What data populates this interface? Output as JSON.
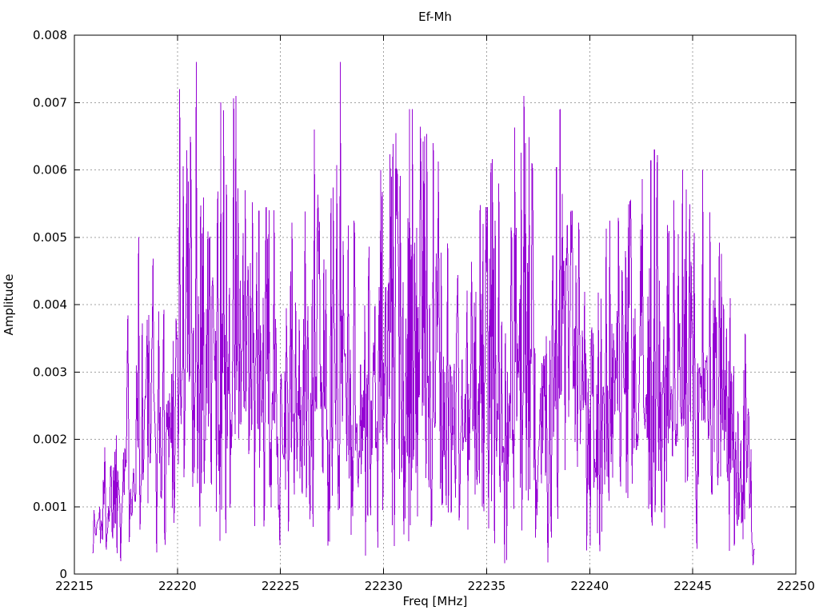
{
  "figure": {
    "background": "#ffffff",
    "text_color": "#000000"
  },
  "chart_data": {
    "type": "line",
    "title": "Ef-Mh",
    "xlabel": "Freq [MHz]",
    "ylabel": "Amplitude",
    "xlim": [
      22215,
      22250
    ],
    "ylim": [
      0,
      0.008
    ],
    "xticks": {
      "values": [
        22215,
        22220,
        22225,
        22230,
        22235,
        22240,
        22245,
        22250
      ],
      "labels": [
        "22215",
        "22220",
        "22225",
        "22230",
        "22235",
        "22240",
        "22245",
        "22250"
      ]
    },
    "yticks": {
      "values": [
        0,
        0.001,
        0.002,
        0.003,
        0.004,
        0.005,
        0.006,
        0.007,
        0.008
      ],
      "labels": [
        "0",
        "0.001",
        "0.002",
        "0.003",
        "0.004",
        "0.005",
        "0.006",
        "0.007",
        "0.008"
      ]
    },
    "grid": {
      "show": true,
      "color": "#a0a0a0",
      "style": "dotted"
    },
    "border_color": "#000000",
    "tick_color": "#000000",
    "legend": "none",
    "series": [
      {
        "name": "Ef-Mh",
        "color": "#9400d3",
        "style": "noisy-spectrum-line",
        "x_start": 22215.88,
        "x_end": 22248.0,
        "n_points": 920,
        "seed": 1337,
        "distribution": "rayleigh",
        "sigma_fraction": 0.4,
        "min_amplitude": 8e-05,
        "envelope": [
          [
            22215.88,
            0.0012
          ],
          [
            22216.3,
            0.0018
          ],
          [
            22217.0,
            0.0028
          ],
          [
            22217.8,
            0.0042
          ],
          [
            22218.1,
            0.005
          ],
          [
            22219.0,
            0.0046
          ],
          [
            22219.6,
            0.0042
          ],
          [
            22220.1,
            0.0072
          ],
          [
            22221.0,
            0.0078
          ],
          [
            22221.8,
            0.006
          ],
          [
            22222.3,
            0.007
          ],
          [
            22222.9,
            0.0072
          ],
          [
            22223.6,
            0.0058
          ],
          [
            22224.4,
            0.0054
          ],
          [
            22225.2,
            0.0054
          ],
          [
            22226.0,
            0.005
          ],
          [
            22226.8,
            0.0066
          ],
          [
            22227.5,
            0.0055
          ],
          [
            22228.0,
            0.0077
          ],
          [
            22228.7,
            0.005
          ],
          [
            22229.5,
            0.005
          ],
          [
            22230.2,
            0.0061
          ],
          [
            22231.0,
            0.007
          ],
          [
            22231.6,
            0.0067
          ],
          [
            22232.5,
            0.0064
          ],
          [
            22233.3,
            0.005
          ],
          [
            22234.2,
            0.0048
          ],
          [
            22235.2,
            0.0062
          ],
          [
            22235.8,
            0.0059
          ],
          [
            22236.8,
            0.0072
          ],
          [
            22237.6,
            0.005
          ],
          [
            22238.6,
            0.007
          ],
          [
            22239.5,
            0.0054
          ],
          [
            22240.5,
            0.0052
          ],
          [
            22241.5,
            0.0053
          ],
          [
            22242.3,
            0.0057
          ],
          [
            22243.2,
            0.0063
          ],
          [
            22244.0,
            0.0055
          ],
          [
            22244.9,
            0.006
          ],
          [
            22245.6,
            0.006
          ],
          [
            22246.3,
            0.0049
          ],
          [
            22247.0,
            0.0038
          ],
          [
            22247.7,
            0.0035
          ],
          [
            22248.0,
            0.0006
          ]
        ],
        "notable_peaks": [
          [
            22218.1,
            0.005
          ],
          [
            22220.1,
            0.0072
          ],
          [
            22220.9,
            0.0076
          ],
          [
            22222.1,
            0.007
          ],
          [
            22222.85,
            0.0071
          ],
          [
            22223.3,
            0.0057
          ],
          [
            22226.65,
            0.0066
          ],
          [
            22227.9,
            0.0076
          ],
          [
            22229.85,
            0.006
          ],
          [
            22231.25,
            0.0069
          ],
          [
            22231.4,
            0.0069
          ],
          [
            22232.0,
            0.0065
          ],
          [
            22232.4,
            0.0064
          ],
          [
            22235.2,
            0.0061
          ],
          [
            22235.6,
            0.0058
          ],
          [
            22236.8,
            0.0071
          ],
          [
            22238.55,
            0.0069
          ],
          [
            22243.15,
            0.0063
          ],
          [
            22244.5,
            0.006
          ],
          [
            22245.5,
            0.006
          ]
        ]
      }
    ]
  }
}
